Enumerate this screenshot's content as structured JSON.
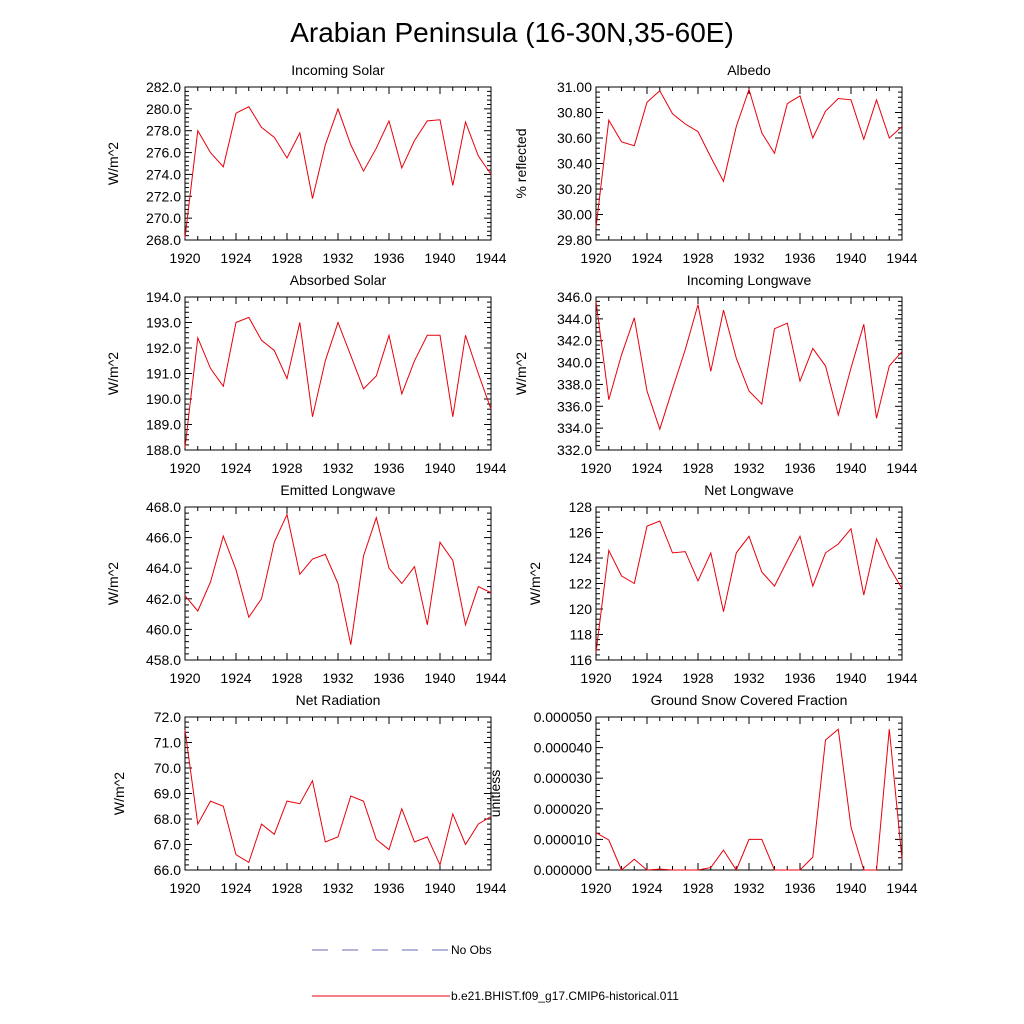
{
  "figure": {
    "title": "Arabian Peninsula (16-30N,35-60E)",
    "series_color": "#e8000b",
    "obs_color": "#6b6bb5"
  },
  "legend": {
    "obs_label": "No Obs",
    "model_label": "b.e21.BHIST.f09_g17.CMIP6-historical.011"
  },
  "chart_data": [
    {
      "id": "incoming-solar",
      "type": "line",
      "title": "Incoming Solar",
      "ylabel": "W/m^2",
      "xlim": [
        1920,
        1944
      ],
      "xticks": [
        1920,
        1924,
        1928,
        1932,
        1936,
        1940,
        1944
      ],
      "ylim": [
        268,
        282
      ],
      "yticks": [
        "268.0",
        "270.0",
        "272.0",
        "274.0",
        "276.0",
        "278.0",
        "280.0",
        "282.0"
      ],
      "yticks_values": [
        268,
        270,
        272,
        274,
        276,
        278,
        280,
        282
      ],
      "x": [
        1920,
        1921,
        1922,
        1923,
        1924,
        1925,
        1926,
        1927,
        1928,
        1929,
        1930,
        1931,
        1932,
        1933,
        1934,
        1935,
        1936,
        1937,
        1938,
        1939,
        1940,
        1941,
        1942,
        1943,
        1944
      ],
      "y": [
        268.2,
        278.0,
        276.0,
        274.7,
        279.6,
        280.2,
        278.3,
        277.4,
        275.5,
        277.8,
        271.8,
        276.7,
        280.0,
        276.7,
        274.3,
        276.4,
        278.9,
        274.6,
        277.1,
        278.9,
        279.0,
        273.0,
        278.8,
        275.7,
        274.0
      ]
    },
    {
      "id": "albedo",
      "type": "line",
      "title": "Albedo",
      "ylabel": "% reflected",
      "xlim": [
        1920,
        1944
      ],
      "xticks": [
        1920,
        1924,
        1928,
        1932,
        1936,
        1940,
        1944
      ],
      "ylim": [
        29.8,
        31.0
      ],
      "yticks": [
        "29.80",
        "30.00",
        "30.20",
        "30.40",
        "30.60",
        "30.80",
        "31.00"
      ],
      "yticks_values": [
        29.8,
        30.0,
        30.2,
        30.4,
        30.6,
        30.8,
        31.0
      ],
      "x": [
        1920,
        1921,
        1922,
        1923,
        1924,
        1925,
        1926,
        1927,
        1928,
        1929,
        1930,
        1931,
        1932,
        1933,
        1934,
        1935,
        1936,
        1937,
        1938,
        1939,
        1940,
        1941,
        1942,
        1943,
        1944
      ],
      "y": [
        29.9,
        30.74,
        30.57,
        30.54,
        30.88,
        30.97,
        30.79,
        30.71,
        30.65,
        30.45,
        30.26,
        30.69,
        30.98,
        30.64,
        30.48,
        30.87,
        30.93,
        30.6,
        30.81,
        30.91,
        30.9,
        30.59,
        30.9,
        30.6,
        30.69
      ]
    },
    {
      "id": "absorbed-solar",
      "type": "line",
      "title": "Absorbed Solar",
      "ylabel": "W/m^2",
      "xlim": [
        1920,
        1944
      ],
      "xticks": [
        1920,
        1924,
        1928,
        1932,
        1936,
        1940,
        1944
      ],
      "ylim": [
        188,
        194
      ],
      "yticks": [
        "188.0",
        "189.0",
        "190.0",
        "191.0",
        "192.0",
        "193.0",
        "194.0"
      ],
      "yticks_values": [
        188,
        189,
        190,
        191,
        192,
        193,
        194
      ],
      "x": [
        1920,
        1921,
        1922,
        1923,
        1924,
        1925,
        1926,
        1927,
        1928,
        1929,
        1930,
        1931,
        1932,
        1933,
        1934,
        1935,
        1936,
        1937,
        1938,
        1939,
        1940,
        1941,
        1942,
        1943,
        1944
      ],
      "y": [
        188.1,
        192.4,
        191.2,
        190.5,
        193.0,
        193.2,
        192.3,
        191.9,
        190.8,
        193.0,
        189.3,
        191.5,
        193.0,
        191.7,
        190.4,
        190.9,
        192.5,
        190.2,
        191.5,
        192.5,
        192.5,
        189.3,
        192.5,
        191.0,
        189.6
      ]
    },
    {
      "id": "incoming-longwave",
      "type": "line",
      "title": "Incoming Longwave",
      "ylabel": "W/m^2",
      "xlim": [
        1920,
        1944
      ],
      "xticks": [
        1920,
        1924,
        1928,
        1932,
        1936,
        1940,
        1944
      ],
      "ylim": [
        332,
        346
      ],
      "yticks": [
        "332.0",
        "334.0",
        "336.0",
        "338.0",
        "340.0",
        "342.0",
        "344.0",
        "346.0"
      ],
      "yticks_values": [
        332,
        334,
        336,
        338,
        340,
        342,
        344,
        346
      ],
      "x": [
        1920,
        1921,
        1922,
        1923,
        1924,
        1925,
        1926,
        1927,
        1928,
        1929,
        1930,
        1931,
        1932,
        1933,
        1934,
        1935,
        1936,
        1937,
        1938,
        1939,
        1940,
        1941,
        1942,
        1943,
        1944
      ],
      "y": [
        345.6,
        336.6,
        340.7,
        344.1,
        337.4,
        333.9,
        337.6,
        341.2,
        345.3,
        339.2,
        344.8,
        340.4,
        337.4,
        336.2,
        343.1,
        343.6,
        338.3,
        341.3,
        339.7,
        335.2,
        339.5,
        343.5,
        334.9,
        339.7,
        341.0
      ]
    },
    {
      "id": "emitted-longwave",
      "type": "line",
      "title": "Emitted Longwave",
      "ylabel": "W/m^2",
      "xlim": [
        1920,
        1944
      ],
      "xticks": [
        1920,
        1924,
        1928,
        1932,
        1936,
        1940,
        1944
      ],
      "ylim": [
        458,
        468
      ],
      "yticks": [
        "458.0",
        "460.0",
        "462.0",
        "464.0",
        "466.0",
        "468.0"
      ],
      "yticks_values": [
        458,
        460,
        462,
        464,
        466,
        468
      ],
      "x": [
        1920,
        1921,
        1922,
        1923,
        1924,
        1925,
        1926,
        1927,
        1928,
        1929,
        1930,
        1931,
        1932,
        1933,
        1934,
        1935,
        1936,
        1937,
        1938,
        1939,
        1940,
        1941,
        1942,
        1943,
        1944
      ],
      "y": [
        462.2,
        461.2,
        463.1,
        466.1,
        463.9,
        460.8,
        462.0,
        465.7,
        467.5,
        463.6,
        464.6,
        464.9,
        463.0,
        459.0,
        464.8,
        467.3,
        464.0,
        463.0,
        464.1,
        460.3,
        465.7,
        464.5,
        460.3,
        462.8,
        462.4
      ]
    },
    {
      "id": "net-longwave",
      "type": "line",
      "title": "Net Longwave",
      "ylabel": "W/m^2",
      "xlim": [
        1920,
        1944
      ],
      "xticks": [
        1920,
        1924,
        1928,
        1932,
        1936,
        1940,
        1944
      ],
      "ylim": [
        116,
        128
      ],
      "yticks": [
        "116",
        "118",
        "120",
        "122",
        "124",
        "126",
        "128"
      ],
      "yticks_values": [
        116,
        118,
        120,
        122,
        124,
        126,
        128
      ],
      "x": [
        1920,
        1921,
        1922,
        1923,
        1924,
        1925,
        1926,
        1927,
        1928,
        1929,
        1930,
        1931,
        1932,
        1933,
        1934,
        1935,
        1936,
        1937,
        1938,
        1939,
        1940,
        1941,
        1942,
        1943,
        1944
      ],
      "y": [
        116.6,
        124.6,
        122.6,
        122.0,
        126.5,
        126.9,
        124.4,
        124.5,
        122.2,
        124.4,
        119.8,
        124.4,
        125.7,
        122.9,
        121.8,
        123.8,
        125.7,
        121.8,
        124.4,
        125.1,
        126.3,
        121.1,
        125.5,
        123.3,
        121.6
      ]
    },
    {
      "id": "net-radiation",
      "type": "line",
      "title": "Net Radiation",
      "ylabel": "W/m^2",
      "xlim": [
        1920,
        1944
      ],
      "xticks": [
        1920,
        1924,
        1928,
        1932,
        1936,
        1940,
        1944
      ],
      "ylim": [
        66,
        72
      ],
      "yticks": [
        "66.0",
        "67.0",
        "68.0",
        "69.0",
        "70.0",
        "71.0",
        "72.0"
      ],
      "yticks_values": [
        66,
        67,
        68,
        69,
        70,
        71,
        72
      ],
      "x": [
        1920,
        1921,
        1922,
        1923,
        1924,
        1925,
        1926,
        1927,
        1928,
        1929,
        1930,
        1931,
        1932,
        1933,
        1934,
        1935,
        1936,
        1937,
        1938,
        1939,
        1940,
        1941,
        1942,
        1943,
        1944
      ],
      "y": [
        71.5,
        67.8,
        68.7,
        68.5,
        66.6,
        66.3,
        67.8,
        67.4,
        68.7,
        68.6,
        69.5,
        67.1,
        67.3,
        68.9,
        68.7,
        67.2,
        66.8,
        68.4,
        67.1,
        67.3,
        66.2,
        68.2,
        67.0,
        67.8,
        68.1
      ]
    },
    {
      "id": "ground-snow",
      "type": "line",
      "title": "Ground Snow Covered Fraction",
      "ylabel": "unitless",
      "xlim": [
        1920,
        1944
      ],
      "xticks": [
        1920,
        1924,
        1928,
        1932,
        1936,
        1940,
        1944
      ],
      "ylim": [
        0,
        5e-05
      ],
      "yticks": [
        "0.000000",
        "0.000010",
        "0.000020",
        "0.000030",
        "0.000040",
        "0.000050"
      ],
      "yticks_values": [
        0,
        1e-05,
        2e-05,
        3e-05,
        4e-05,
        5e-05
      ],
      "x": [
        1920,
        1921,
        1922,
        1923,
        1924,
        1925,
        1926,
        1927,
        1928,
        1929,
        1930,
        1931,
        1932,
        1933,
        1934,
        1935,
        1936,
        1937,
        1938,
        1939,
        1940,
        1941,
        1942,
        1943,
        1944
      ],
      "y": [
        1.22e-05,
        9.8e-06,
        0.0,
        3.5e-06,
        0.0,
        3e-07,
        0.0,
        0.0,
        0.0,
        8e-07,
        6.5e-06,
        0.0,
        1e-05,
        1e-05,
        0.0,
        0.0,
        0.0,
        4.2e-06,
        4.25e-05,
        4.6e-05,
        1.4e-05,
        0.0,
        0.0,
        4.6e-05,
        3.5e-06
      ]
    }
  ]
}
